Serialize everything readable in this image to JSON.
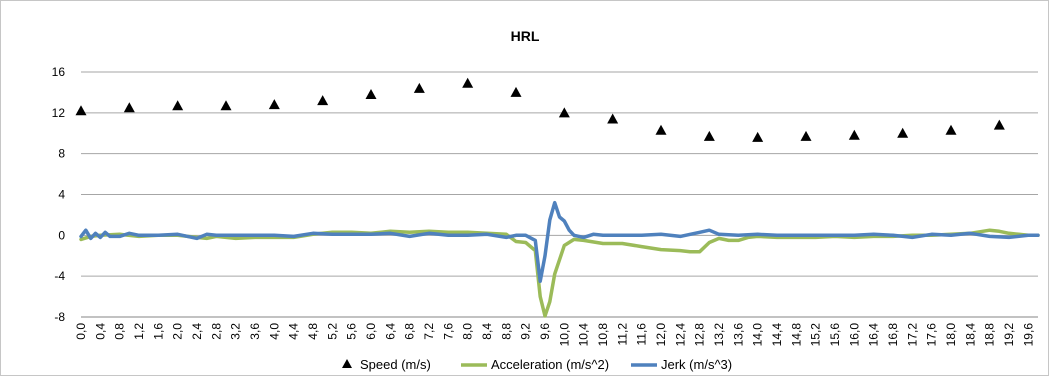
{
  "chart_data": {
    "type": "line",
    "title": "HRL",
    "ylim": [
      -8,
      16
    ],
    "yticks": [
      -8,
      -4,
      0,
      4,
      8,
      12,
      16
    ],
    "xlim": [
      0,
      19.8
    ],
    "xtick_labels": [
      "0,0",
      "0,4",
      "0,8",
      "1,2",
      "1,6",
      "2,0",
      "2,4",
      "2,8",
      "3,2",
      "3,6",
      "4,0",
      "4,4",
      "4,8",
      "5,2",
      "5,6",
      "6,0",
      "6,4",
      "6,8",
      "7,2",
      "7,6",
      "8,0",
      "8,4",
      "8,8",
      "9,2",
      "9,6",
      "10,0",
      "10,4",
      "10,8",
      "11,2",
      "11,6",
      "12,0",
      "12,4",
      "12,8",
      "13,2",
      "13,6",
      "14,0",
      "14,4",
      "14,8",
      "15,2",
      "15,6",
      "16,0",
      "16,4",
      "16,8",
      "17,2",
      "17,6",
      "18,0",
      "18,4",
      "18,8",
      "19,2",
      "19,6"
    ],
    "gridlines": "horizontal",
    "legend_position": "bottom",
    "series": [
      {
        "name": "Speed (m/s)",
        "kind": "marker-triangle",
        "color": "#000000",
        "points": [
          [
            0,
            12.2
          ],
          [
            1,
            12.5
          ],
          [
            2,
            12.7
          ],
          [
            3,
            12.7
          ],
          [
            4,
            12.8
          ],
          [
            5,
            13.2
          ],
          [
            6,
            13.8
          ],
          [
            7,
            14.4
          ],
          [
            8,
            14.9
          ],
          [
            9,
            14.0
          ],
          [
            10,
            12.0
          ],
          [
            11,
            11.4
          ],
          [
            12,
            10.3
          ],
          [
            13,
            9.7
          ],
          [
            14,
            9.6
          ],
          [
            15,
            9.7
          ],
          [
            16,
            9.8
          ],
          [
            17,
            10.0
          ],
          [
            18,
            10.3
          ],
          [
            19,
            10.8
          ]
        ]
      },
      {
        "name": "Acceleration (m/s^2)",
        "kind": "line",
        "color": "#9bbb59",
        "points": [
          [
            0,
            -0.4
          ],
          [
            0.2,
            -0.1
          ],
          [
            0.4,
            0.0
          ],
          [
            0.8,
            0.1
          ],
          [
            1.2,
            -0.1
          ],
          [
            1.6,
            0.0
          ],
          [
            2.0,
            0.0
          ],
          [
            2.4,
            -0.2
          ],
          [
            2.6,
            -0.3
          ],
          [
            2.8,
            -0.1
          ],
          [
            3.2,
            -0.3
          ],
          [
            3.6,
            -0.2
          ],
          [
            4.0,
            -0.2
          ],
          [
            4.4,
            -0.2
          ],
          [
            4.8,
            0.1
          ],
          [
            5.2,
            0.3
          ],
          [
            5.6,
            0.3
          ],
          [
            6.0,
            0.2
          ],
          [
            6.4,
            0.4
          ],
          [
            6.8,
            0.3
          ],
          [
            7.2,
            0.4
          ],
          [
            7.6,
            0.3
          ],
          [
            8.0,
            0.3
          ],
          [
            8.4,
            0.2
          ],
          [
            8.8,
            0.1
          ],
          [
            9.0,
            -0.6
          ],
          [
            9.2,
            -0.7
          ],
          [
            9.4,
            -1.5
          ],
          [
            9.5,
            -6.0
          ],
          [
            9.6,
            -7.9
          ],
          [
            9.7,
            -6.5
          ],
          [
            9.8,
            -3.8
          ],
          [
            10.0,
            -1.0
          ],
          [
            10.2,
            -0.4
          ],
          [
            10.4,
            -0.5
          ],
          [
            10.8,
            -0.8
          ],
          [
            11.2,
            -0.8
          ],
          [
            11.6,
            -1.1
          ],
          [
            12.0,
            -1.4
          ],
          [
            12.4,
            -1.5
          ],
          [
            12.6,
            -1.6
          ],
          [
            12.8,
            -1.6
          ],
          [
            13.0,
            -0.7
          ],
          [
            13.2,
            -0.3
          ],
          [
            13.4,
            -0.5
          ],
          [
            13.6,
            -0.5
          ],
          [
            13.8,
            -0.2
          ],
          [
            14.0,
            -0.1
          ],
          [
            14.4,
            -0.2
          ],
          [
            14.8,
            -0.2
          ],
          [
            15.2,
            -0.2
          ],
          [
            15.6,
            -0.1
          ],
          [
            16.0,
            -0.2
          ],
          [
            16.4,
            -0.1
          ],
          [
            16.8,
            -0.1
          ],
          [
            17.2,
            0.0
          ],
          [
            17.6,
            0.0
          ],
          [
            18.0,
            0.1
          ],
          [
            18.4,
            0.2
          ],
          [
            18.8,
            0.5
          ],
          [
            19.0,
            0.4
          ],
          [
            19.2,
            0.2
          ],
          [
            19.4,
            0.1
          ],
          [
            19.6,
            0.0
          ],
          [
            19.8,
            0.0
          ]
        ]
      },
      {
        "name": "Jerk (m/s^3)",
        "kind": "line",
        "color": "#4f81bd",
        "points": [
          [
            0,
            -0.1
          ],
          [
            0.1,
            0.5
          ],
          [
            0.2,
            -0.3
          ],
          [
            0.3,
            0.2
          ],
          [
            0.4,
            -0.2
          ],
          [
            0.5,
            0.3
          ],
          [
            0.6,
            -0.1
          ],
          [
            0.8,
            -0.1
          ],
          [
            1.0,
            0.2
          ],
          [
            1.2,
            0.0
          ],
          [
            1.6,
            0.0
          ],
          [
            2.0,
            0.1
          ],
          [
            2.4,
            -0.3
          ],
          [
            2.6,
            0.1
          ],
          [
            2.8,
            0.0
          ],
          [
            3.2,
            0.0
          ],
          [
            3.6,
            0.0
          ],
          [
            4.0,
            0.0
          ],
          [
            4.4,
            -0.1
          ],
          [
            4.8,
            0.2
          ],
          [
            5.2,
            0.1
          ],
          [
            5.6,
            0.1
          ],
          [
            6.0,
            0.1
          ],
          [
            6.4,
            0.2
          ],
          [
            6.8,
            -0.1
          ],
          [
            7.2,
            0.2
          ],
          [
            7.6,
            0.0
          ],
          [
            8.0,
            0.0
          ],
          [
            8.4,
            0.1
          ],
          [
            8.8,
            -0.2
          ],
          [
            9.0,
            0.0
          ],
          [
            9.2,
            0.0
          ],
          [
            9.4,
            -0.5
          ],
          [
            9.5,
            -4.5
          ],
          [
            9.6,
            -2.0
          ],
          [
            9.7,
            1.5
          ],
          [
            9.8,
            3.2
          ],
          [
            9.9,
            1.8
          ],
          [
            10.0,
            1.4
          ],
          [
            10.1,
            0.5
          ],
          [
            10.2,
            0.0
          ],
          [
            10.4,
            -0.2
          ],
          [
            10.6,
            0.1
          ],
          [
            10.8,
            0.0
          ],
          [
            11.2,
            0.0
          ],
          [
            11.6,
            0.0
          ],
          [
            12.0,
            0.1
          ],
          [
            12.4,
            -0.1
          ],
          [
            12.8,
            0.3
          ],
          [
            13.0,
            0.5
          ],
          [
            13.2,
            0.1
          ],
          [
            13.6,
            0.0
          ],
          [
            14.0,
            0.1
          ],
          [
            14.4,
            0.0
          ],
          [
            14.8,
            0.0
          ],
          [
            15.2,
            0.0
          ],
          [
            15.6,
            0.0
          ],
          [
            16.0,
            0.0
          ],
          [
            16.4,
            0.1
          ],
          [
            16.8,
            0.0
          ],
          [
            17.2,
            -0.2
          ],
          [
            17.6,
            0.1
          ],
          [
            18.0,
            0.0
          ],
          [
            18.4,
            0.2
          ],
          [
            18.8,
            -0.1
          ],
          [
            19.2,
            -0.2
          ],
          [
            19.6,
            0.0
          ],
          [
            19.8,
            0.0
          ]
        ]
      }
    ]
  }
}
